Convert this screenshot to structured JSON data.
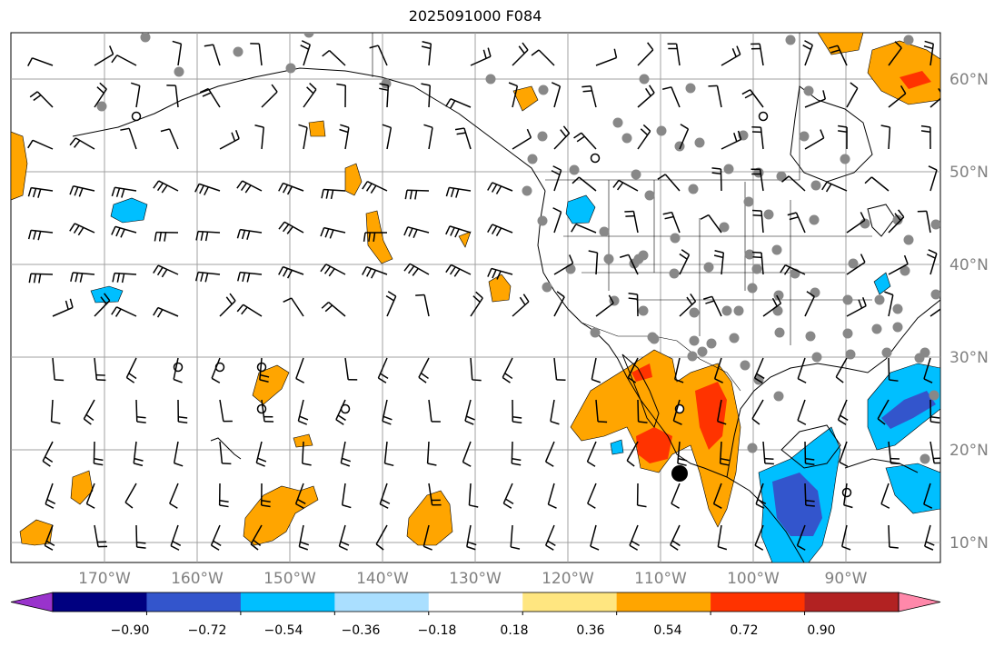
{
  "title": "2025091000 F084",
  "lat_labels": [
    "60°N",
    "50°N",
    "40°N",
    "30°N",
    "20°N",
    "10°N"
  ],
  "lon_labels": [
    "170°W",
    "160°W",
    "150°W",
    "140°W",
    "130°W",
    "120°W",
    "110°W",
    "100°W",
    "90°W"
  ],
  "colorbar": {
    "ticks": [
      "−0.90",
      "−0.72",
      "−0.54",
      "−0.36",
      "−0.18",
      "0.18",
      "0.36",
      "0.54",
      "0.72",
      "0.90"
    ],
    "colors": [
      "#9933cc",
      "#000080",
      "#3355cc",
      "#00bfff",
      "#aadfff",
      "#ffffff",
      "#ffe680",
      "#ffa500",
      "#ff3300",
      "#b22222",
      "#ff88aa"
    ]
  },
  "palette": {
    "land_line": "#000000",
    "grid": "#a0a0a0",
    "station": "#888888",
    "warm1": "#ffa500",
    "warm2": "#ff3300",
    "cool1": "#00bfff",
    "cool2": "#3355cc"
  }
}
